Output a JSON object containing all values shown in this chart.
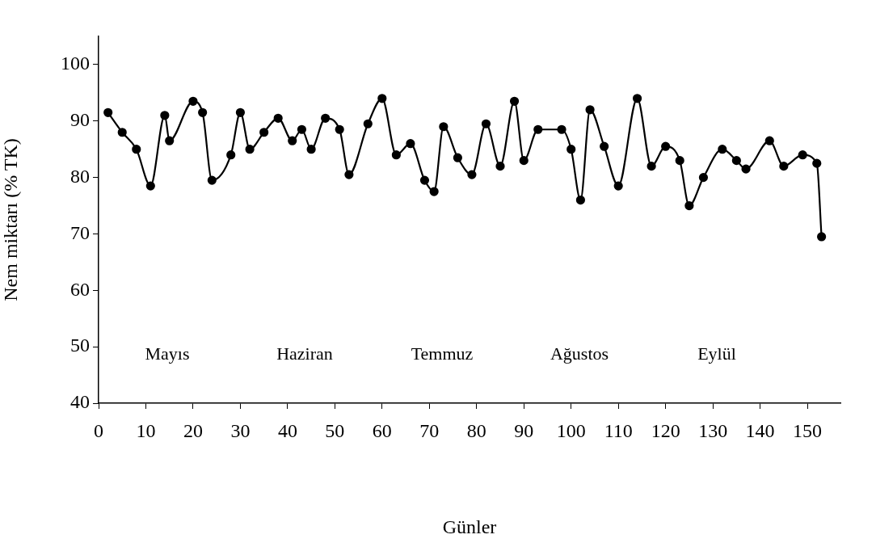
{
  "chart_data": {
    "type": "line",
    "xlabel": "Günler",
    "ylabel": "Nem miktarı (% TK)",
    "x": [
      2,
      5,
      8,
      11,
      14,
      15,
      20,
      22,
      24,
      28,
      30,
      32,
      35,
      38,
      41,
      43,
      45,
      48,
      51,
      53,
      57,
      60,
      63,
      66,
      69,
      71,
      73,
      76,
      79,
      82,
      85,
      88,
      90,
      93,
      98,
      100,
      102,
      104,
      107,
      110,
      114,
      117,
      120,
      123,
      125,
      128,
      132,
      135,
      137,
      142,
      145,
      149,
      152,
      153
    ],
    "series": [
      {
        "color": "#000000",
        "values": [
          91.5,
          88,
          85,
          78.5,
          91,
          86.5,
          93.5,
          91.5,
          79.5,
          84,
          91.5,
          85,
          88,
          90.5,
          86.5,
          88.5,
          85,
          90.5,
          88.5,
          80.5,
          89.5,
          94,
          84,
          86,
          79.5,
          77.5,
          89,
          83.5,
          80.5,
          89.5,
          82,
          93.5,
          83,
          88.5,
          88.5,
          85,
          76,
          92,
          85.5,
          78.5,
          94,
          82,
          85.5,
          83,
          75,
          80,
          85,
          83,
          81.5,
          86.5,
          82,
          84,
          82.5,
          69.5
        ]
      }
    ],
    "xlim": [
      0,
      157
    ],
    "ylim": [
      40,
      105
    ],
    "xticks": [
      0,
      10,
      20,
      30,
      40,
      50,
      60,
      70,
      80,
      90,
      100,
      110,
      120,
      130,
      140,
      150
    ],
    "yticks": [
      40,
      50,
      60,
      70,
      80,
      90,
      100
    ],
    "grid": false,
    "legend": false,
    "marker": "circle",
    "line_style": "solid",
    "annotations": [
      "Mayıs",
      "Haziran",
      "Temmuz",
      "Ağustos",
      "Eylül"
    ]
  }
}
